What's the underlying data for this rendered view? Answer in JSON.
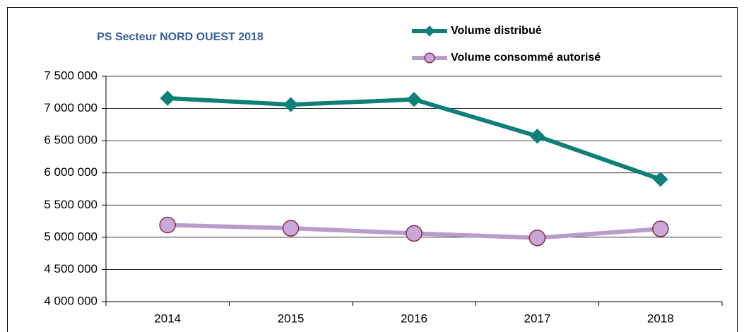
{
  "chart_data": {
    "type": "line",
    "title": "PS Secteur NORD OUEST 2018",
    "categories": [
      "2014",
      "2015",
      "2016",
      "2017",
      "2018"
    ],
    "series": [
      {
        "name": "Volume distribué",
        "color": "#0f7f78",
        "marker": "diamond",
        "marker_edge": "#0f7f78",
        "values": [
          7160000,
          7060000,
          7140000,
          6570000,
          5900000
        ]
      },
      {
        "name": "Volume consommé autorisé",
        "color": "#b89ccc",
        "marker": "circle",
        "marker_edge": "#8b2a52",
        "marker_fill": "#c8a8d8",
        "values": [
          5190000,
          5140000,
          5060000,
          4990000,
          5130000
        ]
      }
    ],
    "ylim": [
      4000000,
      7500000
    ],
    "yticks": [
      {
        "value": 4000000,
        "label": "4 000 000"
      },
      {
        "value": 4500000,
        "label": "4 500 000"
      },
      {
        "value": 5000000,
        "label": "5 000 000"
      },
      {
        "value": 5500000,
        "label": "5 500 000"
      },
      {
        "value": 6000000,
        "label": "6 000 000"
      },
      {
        "value": 6500000,
        "label": "6 500 000"
      },
      {
        "value": 7000000,
        "label": "7 000 000"
      },
      {
        "value": 7500000,
        "label": "7 500 000"
      }
    ],
    "grid": true,
    "legend": "top"
  }
}
